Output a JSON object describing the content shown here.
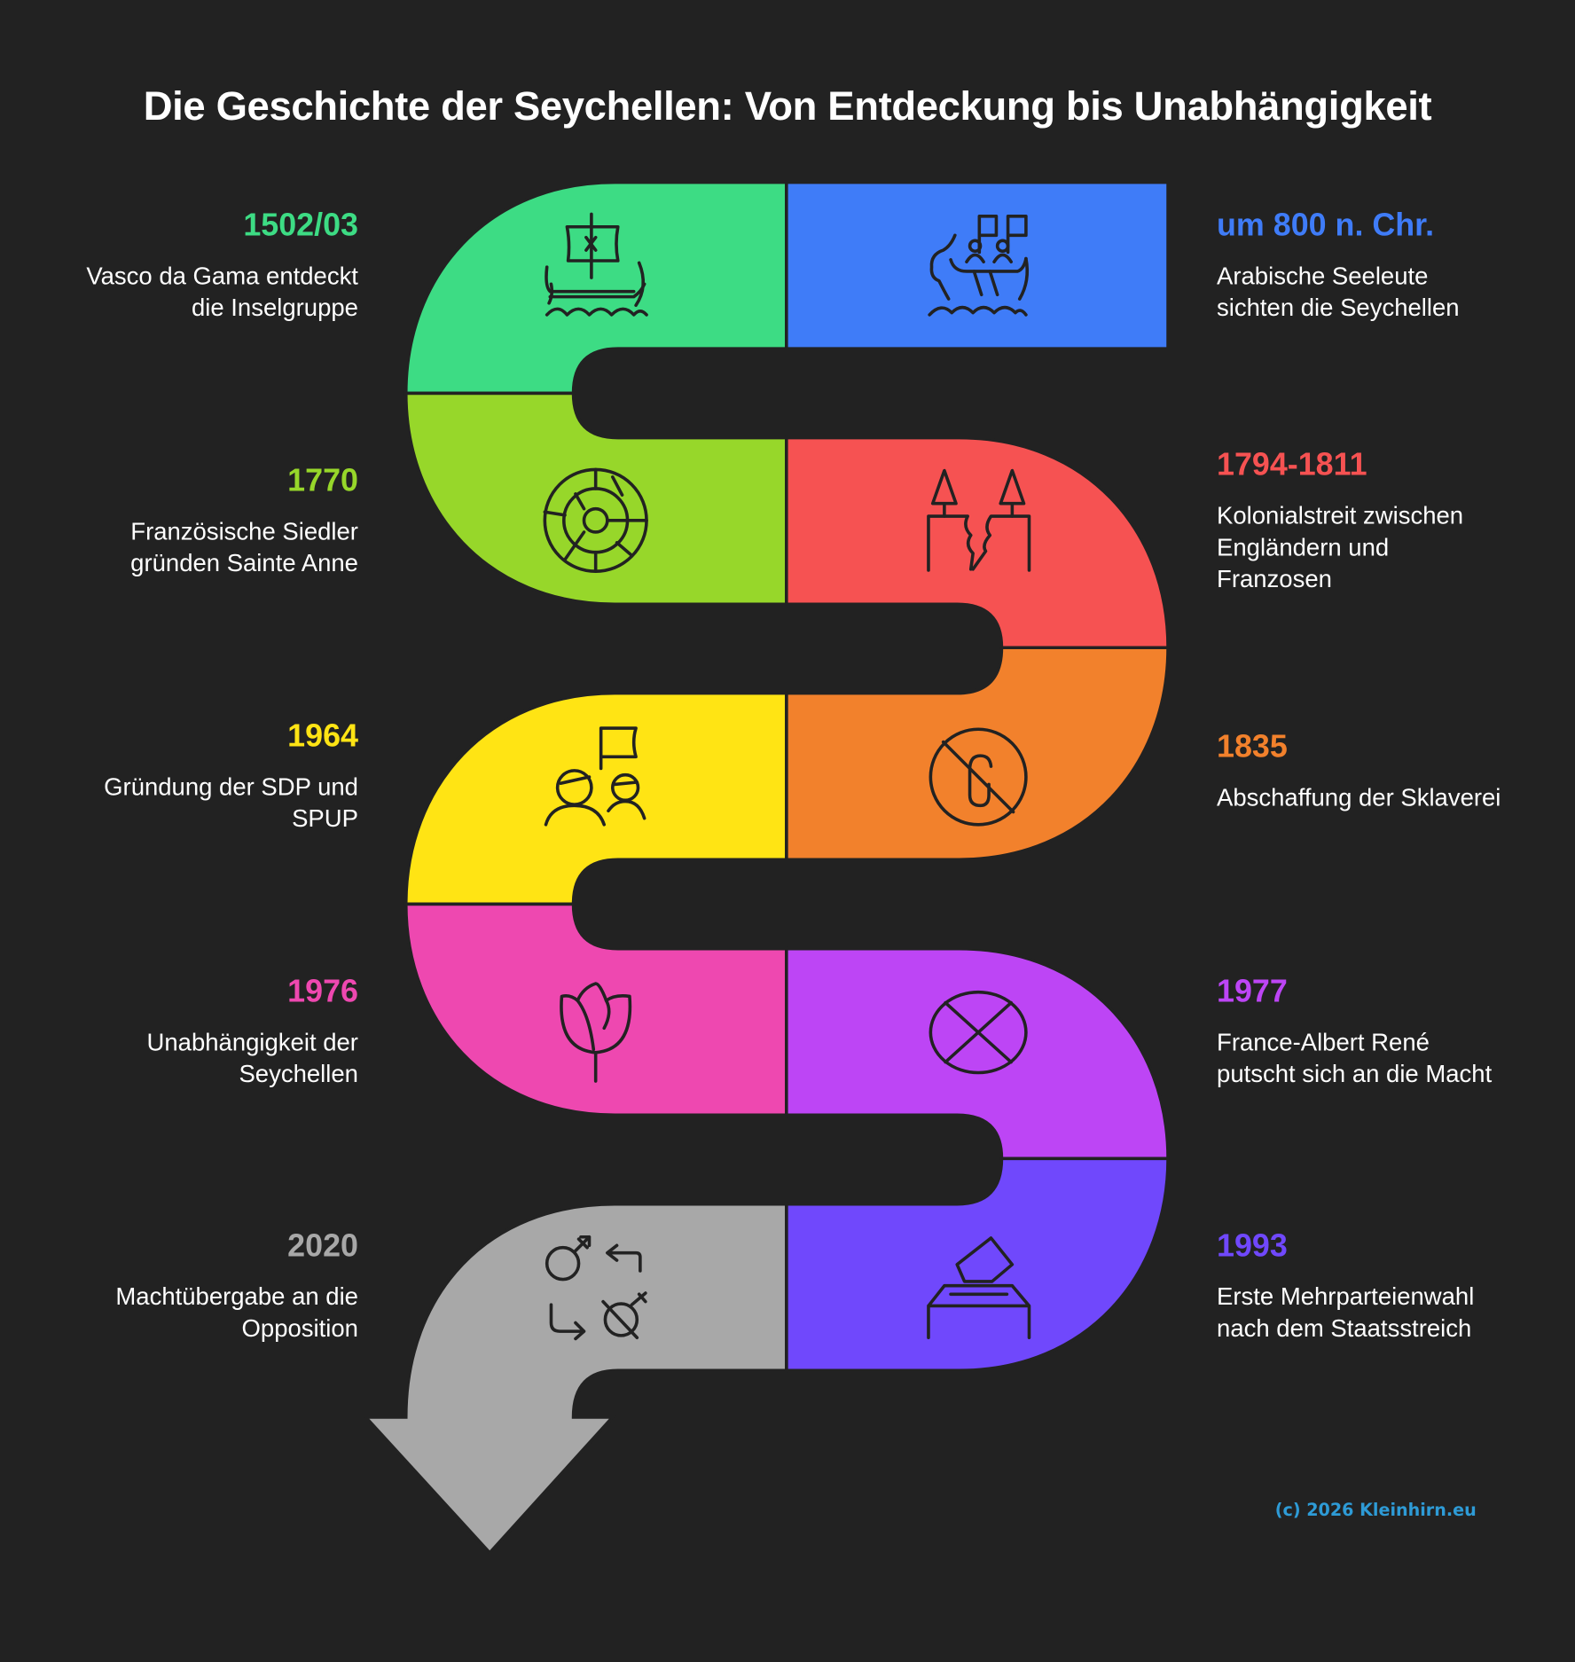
{
  "title": "Die Geschichte der Seychellen: Von Entdeckung bis Unabhängigkeit",
  "background": "#222222",
  "events": [
    {
      "year": "1502/03",
      "desc": [
        "Vasco da Gama entdeckt",
        "die Inselgruppe"
      ],
      "color": "#3ddc84",
      "icon": "ship-icon",
      "side": "left"
    },
    {
      "year": "um 800 n. Chr.",
      "desc": [
        "Arabische Seeleute",
        "sichten die Seychellen"
      ],
      "color": "#3f7cf8",
      "icon": "boat-with-flags-icon",
      "side": "right"
    },
    {
      "year": "1770",
      "desc": [
        "Französische Siedler",
        "gründen Sainte Anne"
      ],
      "color": "#97d72a",
      "icon": "wheel-icon",
      "side": "left"
    },
    {
      "year": "1794-1811",
      "desc": [
        "Kolonialstreit zwischen",
        "Engländern und",
        "Franzosen"
      ],
      "color": "#f65252",
      "icon": "split-land-icon",
      "side": "right"
    },
    {
      "year": "1964",
      "desc": [
        "Gründung der SDP und",
        "SPUP"
      ],
      "color": "#ffe414",
      "icon": "people-flag-icon",
      "side": "left"
    },
    {
      "year": "1835",
      "desc": [
        "Abschaffung der Sklaverei"
      ],
      "color": "#f2812c",
      "icon": "no-chain-icon",
      "side": "right"
    },
    {
      "year": "1976",
      "desc": [
        "Unabhängigkeit der",
        "Seychellen"
      ],
      "color": "#ee48b0",
      "icon": "rose-icon",
      "side": "left"
    },
    {
      "year": "1977",
      "desc": [
        "France-Albert René",
        "putscht sich an die Macht"
      ],
      "color": "#bd45f5",
      "icon": "circle-x-icon",
      "side": "right"
    },
    {
      "year": "2020",
      "desc": [
        "Machtübergabe an die",
        "Opposition"
      ],
      "color": "#a8a8a8",
      "icon": "power-transfer-icon",
      "side": "left"
    },
    {
      "year": "1993",
      "desc": [
        "Erste Mehrparteienwahl",
        "nach dem Staatsstreich"
      ],
      "color": "#7048fc",
      "icon": "ballot-box-icon",
      "side": "right"
    }
  ],
  "credit": {
    "text": "(c) 2026 Kleinhirn.eu",
    "color": "#2e9bd6"
  }
}
